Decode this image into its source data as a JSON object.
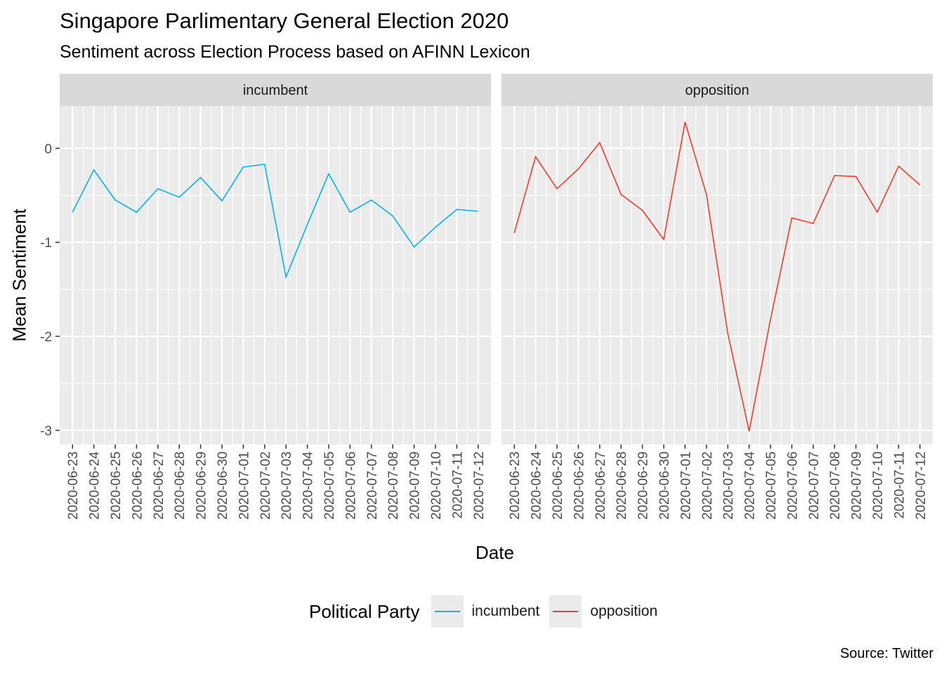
{
  "chart_data": {
    "type": "line",
    "title": "Singapore Parlimentary General Election 2020",
    "subtitle": "Sentiment across Election Process based on AFINN Lexicon",
    "caption": "Source: Twitter",
    "xlabel": "Date",
    "ylabel": "Mean Sentiment",
    "ylim": [
      -3.15,
      0.45
    ],
    "yticks": [
      "0",
      "-1",
      "-2",
      "-3"
    ],
    "x": [
      "2020-06-23",
      "2020-06-24",
      "2020-06-25",
      "2020-06-26",
      "2020-06-27",
      "2020-06-28",
      "2020-06-29",
      "2020-06-30",
      "2020-07-01",
      "2020-07-02",
      "2020-07-03",
      "2020-07-04",
      "2020-07-05",
      "2020-07-06",
      "2020-07-07",
      "2020-07-08",
      "2020-07-09",
      "2020-07-10",
      "2020-07-11",
      "2020-07-12"
    ],
    "grid": true,
    "legend": {
      "title": "Political Party",
      "position": "bottom",
      "entries": [
        "incumbent",
        "opposition"
      ]
    },
    "panels": [
      {
        "name": "incumbent",
        "color": "#00b4e8",
        "values": [
          -0.68,
          -0.23,
          -0.55,
          -0.68,
          -0.43,
          -0.52,
          -0.31,
          -0.56,
          -0.2,
          -0.17,
          -1.37,
          -0.81,
          -0.27,
          -0.68,
          -0.55,
          -0.72,
          -1.05,
          -0.84,
          -0.65,
          -0.67
        ]
      },
      {
        "name": "opposition",
        "color": "#ef3b2c",
        "values": [
          -0.9,
          -0.09,
          -0.43,
          -0.22,
          0.06,
          -0.49,
          -0.66,
          -0.97,
          0.28,
          -0.49,
          -1.97,
          -3.01,
          -1.82,
          -0.74,
          -0.8,
          -0.29,
          -0.3,
          -0.68,
          -0.19,
          -0.39
        ]
      }
    ]
  }
}
